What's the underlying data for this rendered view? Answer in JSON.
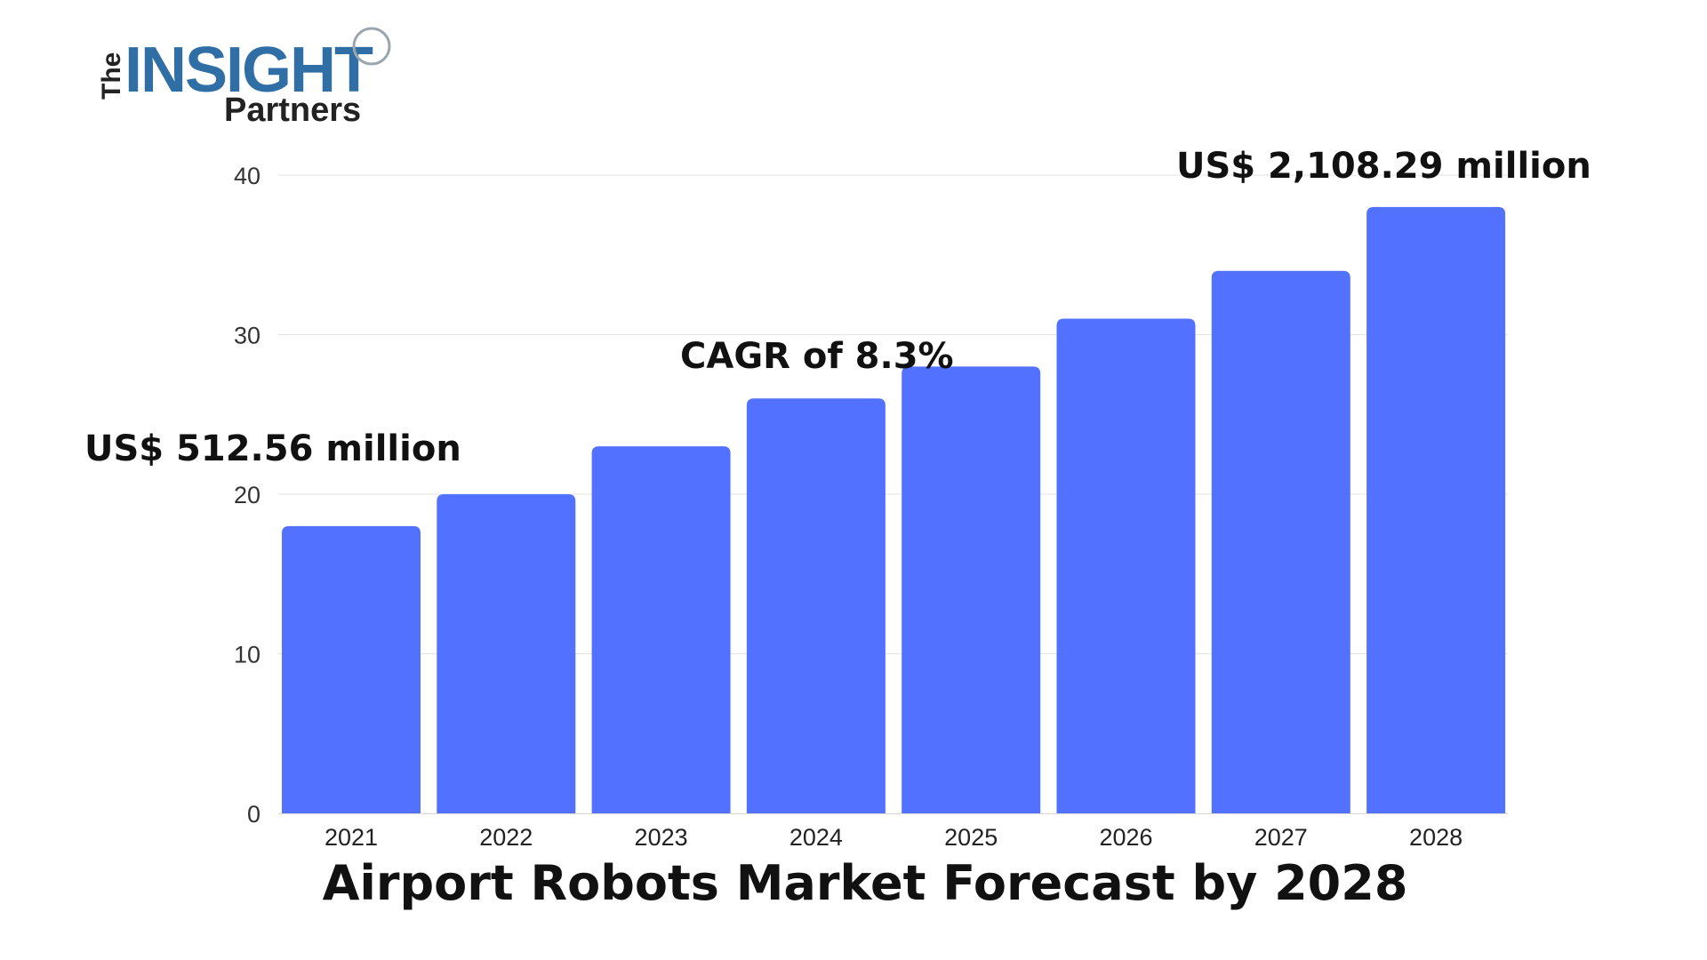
{
  "logo": {
    "the": "The",
    "main": "INSIGHT",
    "sub": "Partners"
  },
  "chart_data": {
    "type": "bar",
    "title": "Airport Robots Market Forecast by 2028",
    "categories": [
      "2021",
      "2022",
      "2023",
      "2024",
      "2025",
      "2026",
      "2027",
      "2028"
    ],
    "values": [
      18,
      20,
      23,
      26,
      28,
      31,
      34,
      38
    ],
    "ylim": [
      0,
      40
    ],
    "yticks": [
      0,
      10,
      20,
      30,
      40
    ],
    "grid": true,
    "bar_color": "#5271ff",
    "annotations": {
      "start": "US$ 512.56 million",
      "cagr": "CAGR of 8.3%",
      "end": "US$ 2,108.29 million"
    }
  }
}
